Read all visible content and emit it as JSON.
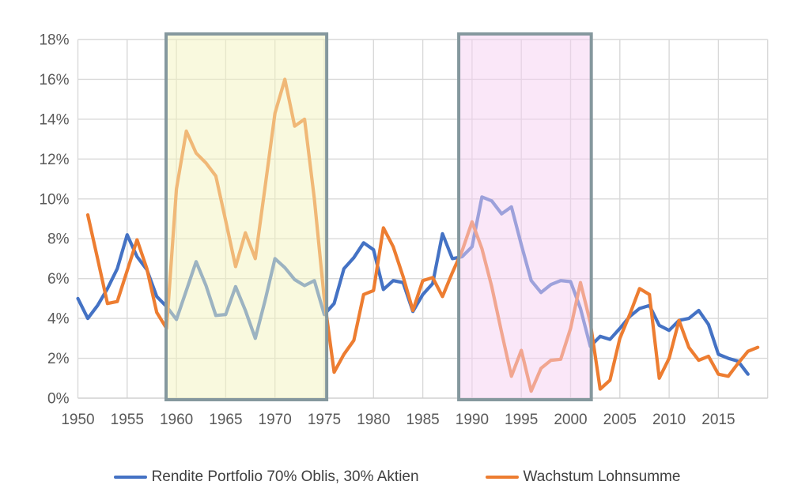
{
  "chart_data": {
    "type": "line",
    "title": "",
    "x_axis": {
      "tick_labels": [
        "1950",
        "1955",
        "1960",
        "1965",
        "1970",
        "1975",
        "1980",
        "1985",
        "1990",
        "1995",
        "2000",
        "2005",
        "2010",
        "2015"
      ],
      "tick_years": [
        1950,
        1955,
        1960,
        1965,
        1970,
        1975,
        1980,
        1985,
        1990,
        1995,
        2000,
        2005,
        2010,
        2015
      ],
      "gridline_years": [
        1950,
        1955,
        1960,
        1965,
        1970,
        1975,
        1980,
        1985,
        1990,
        1995,
        2000,
        2005,
        2010,
        2015,
        2020
      ],
      "year_min": 1950,
      "year_max": 2020
    },
    "y_axis": {
      "tick_labels": [
        "0%",
        "2%",
        "4%",
        "6%",
        "8%",
        "10%",
        "12%",
        "14%",
        "16%",
        "18%"
      ],
      "tick_values": [
        0,
        2,
        4,
        6,
        8,
        10,
        12,
        14,
        16,
        18
      ],
      "min": 0,
      "max": 18,
      "unit": "%"
    },
    "grid": "both",
    "legend_position": "bottom",
    "series": [
      {
        "name": "Rendite Portfolio 70% Oblis, 30% Aktien",
        "color": "#4472C4",
        "x_start": 1950,
        "values": [
          5.0,
          4.0,
          4.65,
          5.5,
          6.5,
          8.2,
          7.1,
          6.45,
          5.1,
          4.6,
          3.95,
          5.4,
          6.85,
          5.65,
          4.15,
          4.2,
          5.6,
          4.4,
          3.0,
          4.9,
          7.0,
          6.55,
          5.95,
          5.65,
          5.9,
          4.2,
          4.75,
          6.5,
          7.05,
          7.8,
          7.45,
          5.45,
          5.9,
          5.8,
          4.35,
          5.2,
          5.75,
          8.25,
          7.0,
          7.1,
          7.6,
          10.1,
          9.9,
          9.25,
          9.6,
          7.7,
          5.9,
          5.3,
          5.7,
          5.9,
          5.85,
          4.5,
          2.6,
          3.1,
          2.95,
          3.5,
          4.1,
          4.5,
          4.65,
          3.65,
          3.4,
          3.9,
          4.0,
          4.4,
          3.7,
          2.2,
          2.0,
          1.85,
          1.2
        ]
      },
      {
        "name": "Wachstum Lohnsumme",
        "color": "#ED7D31",
        "x_start": 1951,
        "values": [
          9.2,
          7.0,
          4.75,
          4.85,
          6.4,
          7.95,
          6.5,
          4.3,
          3.5,
          10.5,
          13.4,
          12.3,
          11.8,
          11.15,
          8.9,
          6.6,
          8.3,
          7.0,
          10.6,
          14.3,
          16.0,
          13.65,
          14.0,
          10.0,
          5.0,
          1.3,
          2.2,
          2.9,
          5.2,
          5.4,
          8.55,
          7.6,
          6.1,
          4.4,
          5.9,
          6.05,
          5.1,
          6.3,
          7.4,
          8.85,
          7.5,
          5.6,
          3.3,
          1.1,
          2.4,
          0.35,
          1.5,
          1.9,
          1.95,
          3.5,
          5.8,
          3.8,
          0.45,
          0.9,
          3.0,
          4.2,
          5.5,
          5.2,
          1.0,
          2.0,
          3.9,
          2.55,
          1.9,
          2.1,
          1.2,
          1.1,
          1.75,
          2.35,
          2.55
        ]
      }
    ],
    "highlight_boxes": [
      {
        "name": "period-1959-1975",
        "from_year": 1958.95,
        "to_year": 1975.25,
        "fill": "rgba(244,244,189,0.5)",
        "border": "#85989E"
      },
      {
        "name": "period-1989-2002",
        "from_year": 1988.65,
        "to_year": 2002.1,
        "fill": "rgba(246,208,241,0.5)",
        "border": "#85989E"
      }
    ],
    "colors": {
      "gridline": "#D9D9D9",
      "axis_line": "#D0D0D0",
      "tick_text": "#595959",
      "legend_text": "#404040",
      "background": "#FFFFFF"
    }
  }
}
